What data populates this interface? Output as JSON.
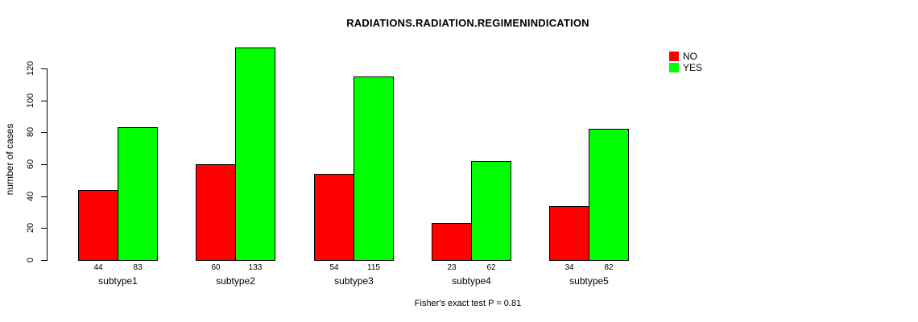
{
  "title": "RADIATIONS.RADIATION.REGIMENINDICATION",
  "chart_data": {
    "type": "bar",
    "title": "RADIATIONS.RADIATION.REGIMENINDICATION",
    "xlabel": "",
    "ylabel": "number of cases",
    "categories": [
      "subtype1",
      "subtype2",
      "subtype3",
      "subtype4",
      "subtype5"
    ],
    "series": [
      {
        "name": "NO",
        "color": "#ff0000",
        "values": [
          44,
          60,
          54,
          23,
          34
        ]
      },
      {
        "name": "YES",
        "color": "#00ff00",
        "values": [
          83,
          133,
          115,
          62,
          82
        ]
      }
    ],
    "bar_value_labels": [
      [
        44,
        83
      ],
      [
        60,
        133
      ],
      [
        54,
        115
      ],
      [
        23,
        62
      ],
      [
        34,
        82
      ]
    ],
    "ylim": [
      0,
      133
    ],
    "yticks": [
      0,
      20,
      40,
      60,
      80,
      100,
      120
    ],
    "grid": false,
    "legend_position": "top-right",
    "annotation": "Fisher's exact test P = 0.81"
  },
  "colors": {
    "no": "#ff0000",
    "yes": "#00ff00",
    "axis": "#000000",
    "background": "#ffffff"
  }
}
